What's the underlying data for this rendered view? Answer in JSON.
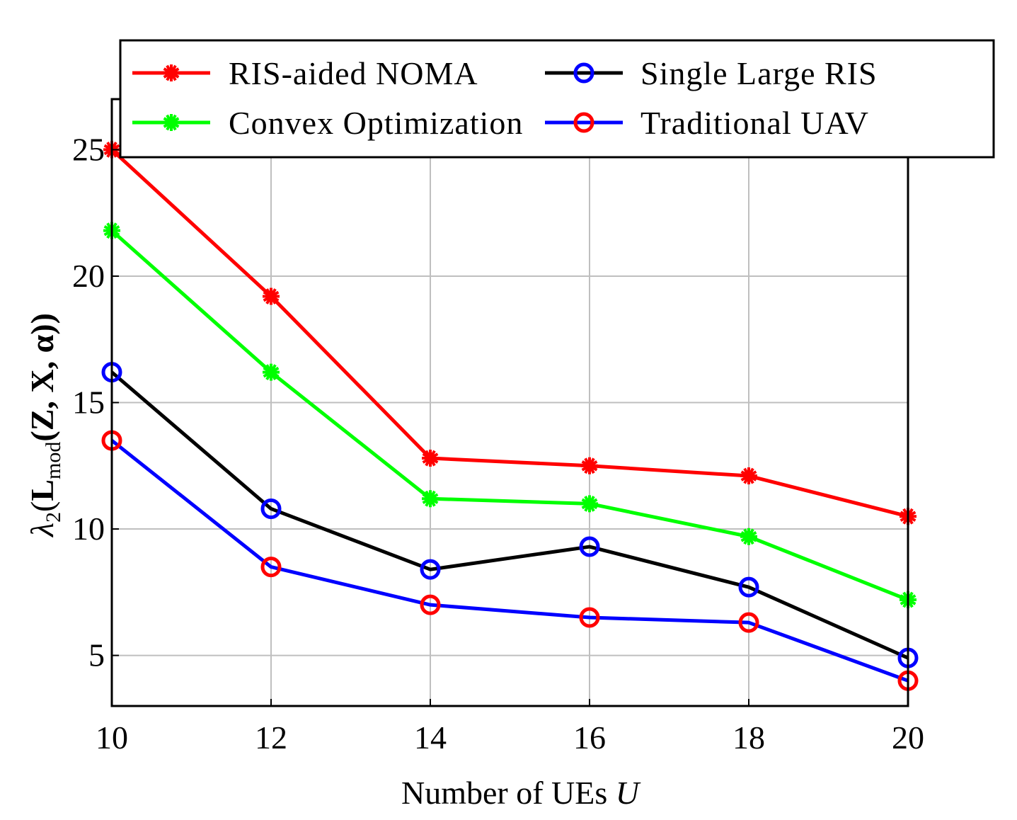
{
  "chart_data": {
    "type": "line",
    "title": "",
    "xlabel": "Number of UEs",
    "xlabel_var": "U",
    "ylabel": "λ2(Lmod(Z, X, α))",
    "ylabel_parts": {
      "lambda": "λ",
      "lambda_sub": "2",
      "open": "(",
      "L": "L",
      "L_sub": "mod",
      "args": "(Z, X, α))"
    },
    "xlim": [
      10,
      20
    ],
    "ylim": [
      3,
      27
    ],
    "xticks": [
      10,
      12,
      14,
      16,
      18,
      20
    ],
    "yticks": [
      5,
      10,
      15,
      20,
      25
    ],
    "grid": true,
    "legend_position": "top-right",
    "x": [
      10,
      12,
      14,
      16,
      18,
      20
    ],
    "series": [
      {
        "name": "RIS-aided NOMA",
        "color": "#ff0000",
        "marker": "star",
        "marker_color": "#ff0000",
        "values": [
          25.0,
          19.2,
          12.8,
          12.5,
          12.1,
          10.5
        ]
      },
      {
        "name": "Convex Optimization",
        "color": "#00ff00",
        "marker": "star",
        "marker_color": "#00ff00",
        "values": [
          21.8,
          16.2,
          11.2,
          11.0,
          9.7,
          7.2
        ]
      },
      {
        "name": "Single Large RIS",
        "color": "#000000",
        "marker": "circle",
        "marker_color": "#0000ff",
        "values": [
          16.2,
          10.8,
          8.4,
          9.3,
          7.7,
          4.9
        ]
      },
      {
        "name": "Traditional UAV",
        "color": "#0000ff",
        "marker": "circle",
        "marker_color": "#ff0000",
        "values": [
          13.5,
          8.5,
          7.0,
          6.5,
          6.3,
          4.0
        ]
      }
    ]
  }
}
